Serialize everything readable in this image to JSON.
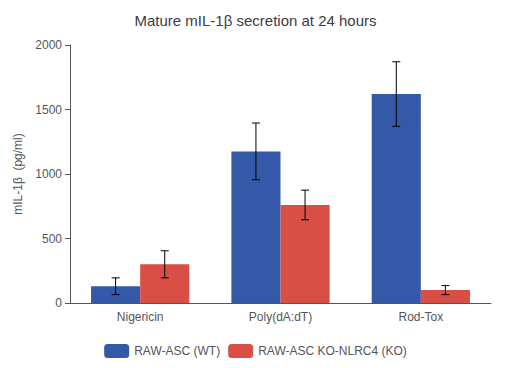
{
  "chart_data": {
    "type": "bar",
    "title": "Mature mIL-1β secretion at 24 hours",
    "ylabel": "mIL-1β  (pg/ml)",
    "categories": [
      "Nigericin",
      "Poly(dA:dT)",
      "Rod-Tox"
    ],
    "series": [
      {
        "name": "RAW-ASC (WT)",
        "color": "#3459A8",
        "values": [
          130,
          1175,
          1620
        ],
        "errors": [
          65,
          220,
          250
        ]
      },
      {
        "name": "RAW-ASC KO-NLRC4 (KO)",
        "color": "#D94F45",
        "values": [
          300,
          760,
          100
        ],
        "errors": [
          105,
          115,
          35
        ]
      }
    ],
    "ylim": [
      0,
      2000
    ],
    "yticks": [
      0,
      500,
      1000,
      1500,
      2000
    ],
    "grid": false,
    "legend": "bottom"
  }
}
